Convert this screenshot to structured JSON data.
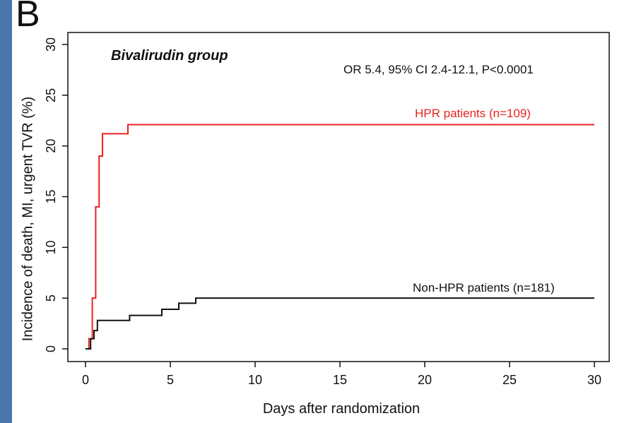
{
  "panel_letter": "B",
  "chart_data": {
    "type": "line",
    "title": "Bivalirudin group",
    "annotation": "OR 5.4, 95% CI 2.4-12.1, P<0.0001",
    "xlabel": "Days after randomization",
    "ylabel": "Incidence of death, MI, urgent TVR (%)",
    "xlim": [
      0,
      30
    ],
    "ylim": [
      0,
      30
    ],
    "xticks": [
      0,
      5,
      10,
      15,
      20,
      25,
      30
    ],
    "yticks": [
      0,
      5,
      10,
      15,
      20,
      25,
      30
    ],
    "grid": false,
    "step": true,
    "series": [
      {
        "name": "HPR patients (n=109)",
        "color": "#e8231f",
        "x": [
          0,
          0.2,
          0.4,
          0.6,
          0.8,
          1.0,
          2.5,
          30
        ],
        "y": [
          0,
          1,
          5,
          14,
          19,
          21.2,
          22.1,
          22.1
        ]
      },
      {
        "name": "Non-HPR patients (n=181)",
        "color": "#111111",
        "x": [
          0,
          0.3,
          0.5,
          0.7,
          2.6,
          4.5,
          5.5,
          6.5,
          30
        ],
        "y": [
          0,
          1,
          1.8,
          2.8,
          3.3,
          3.9,
          4.5,
          5.0,
          5.0
        ]
      }
    ]
  }
}
